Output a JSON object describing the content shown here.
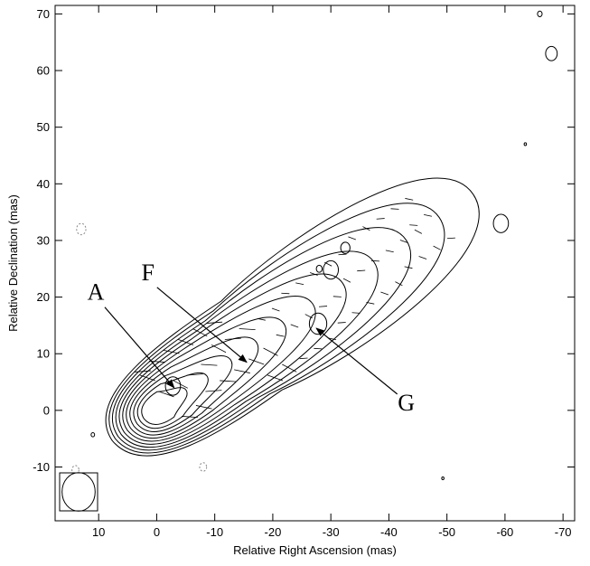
{
  "chart_data": {
    "type": "contour",
    "xlabel": "Relative Right Ascension (mas)",
    "ylabel": "Relative Declination (mas)",
    "xlim": [
      17.5,
      -72
    ],
    "ylim": [
      -19.5,
      71.5
    ],
    "xticks": [
      10,
      0,
      -10,
      -20,
      -30,
      -40,
      -50,
      -60,
      -70
    ],
    "xtick_labels": [
      "10",
      "0",
      "-10",
      "-20",
      "-30",
      "-40",
      "-50",
      "-60",
      "-70"
    ],
    "yticks": [
      -10,
      0,
      10,
      20,
      30,
      40,
      50,
      60,
      70
    ],
    "ytick_labels": [
      "-10",
      "0",
      "10",
      "20",
      "30",
      "40",
      "50",
      "60",
      "70"
    ],
    "core": {
      "x": 0,
      "y": 0
    },
    "jet_position_angle_deg": 305,
    "contour_levels_count": 11,
    "annotations": [
      {
        "label": "A",
        "text_x": 10.5,
        "text_y": 19.5,
        "target_x": -3.0,
        "target_y": 4.0
      },
      {
        "label": "F",
        "text_x": 1.5,
        "text_y": 23.0,
        "target_x": -15.5,
        "target_y": 8.5
      },
      {
        "label": "G",
        "text_x": -43.0,
        "text_y": 0.0,
        "target_x": -27.5,
        "target_y": 14.5
      }
    ],
    "beam": {
      "major_mas": 6.8,
      "minor_mas": 5.7
    },
    "features": [
      {
        "name": "component-A",
        "x": -2.8,
        "y": 4.3
      },
      {
        "name": "component-G",
        "x": -27.8,
        "y": 15.3
      },
      {
        "name": "knot-31-29",
        "x": -32.5,
        "y": 28.7
      },
      {
        "name": "knot-30-25",
        "x": -30.0,
        "y": 24.8
      },
      {
        "name": "knot-28-25",
        "x": -28.0,
        "y": 25.0
      },
      {
        "name": "outlier-59-33",
        "x": -59.3,
        "y": 33.0
      },
      {
        "name": "outlier-68-63",
        "x": -68.0,
        "y": 63.0
      },
      {
        "name": "outlier-66-70",
        "x": -66.0,
        "y": 70.0
      },
      {
        "name": "outlier-63-47",
        "x": -63.5,
        "y": 47.0
      },
      {
        "name": "outlier-11-4",
        "x": 11.0,
        "y": -4.3
      },
      {
        "name": "outlier-49-12",
        "x": -49.3,
        "y": -12.0
      },
      {
        "name": "neg-outlier-13-32",
        "x": 13.0,
        "y": 32.0
      },
      {
        "name": "neg-outlier-8-10",
        "x": -8.0,
        "y": -10.0
      },
      {
        "name": "neg-outlier-14-10",
        "x": 14.0,
        "y": -10.5
      }
    ]
  }
}
